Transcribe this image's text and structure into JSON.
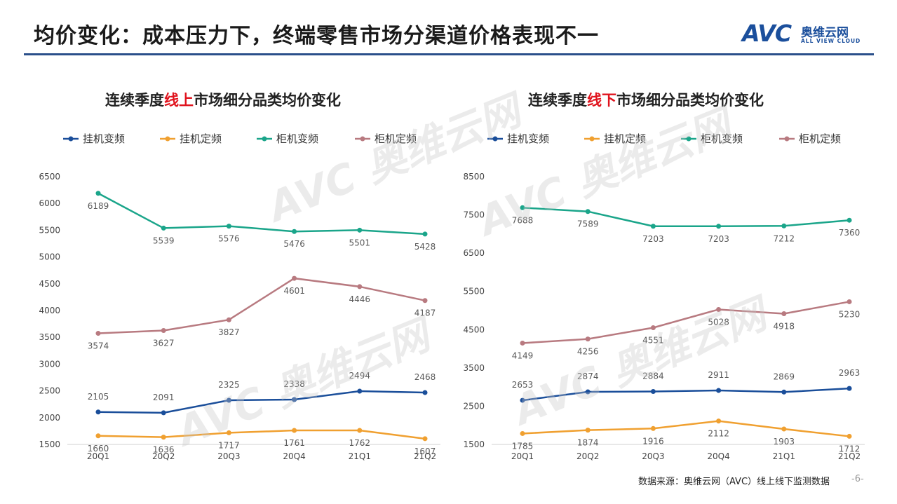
{
  "header": {
    "title": "均价变化：成本压力下，终端零售市场分渠道价格表现不一",
    "logo_mark": "AVC",
    "logo_cn": "奥维云网",
    "logo_en": "ALL VIEW CLOUD"
  },
  "footer": {
    "source": "数据来源：奥维云网（AVC）线上线下监测数据",
    "page_number": "-6-"
  },
  "colors": {
    "hang_var": "#1a4e9a",
    "hang_fixed": "#f0a030",
    "cab_var": "#1aa58a",
    "cab_fixed": "#b87a80",
    "title_rule": "#2a4f8a",
    "highlight": "#e0141e"
  },
  "chart_data": [
    {
      "type": "line",
      "title_parts": [
        "连续季度",
        "线上",
        "市场细分品类均价变化"
      ],
      "categories": [
        "20Q1",
        "20Q2",
        "20Q3",
        "20Q4",
        "21Q1",
        "21Q2"
      ],
      "ylim": [
        1500,
        6500
      ],
      "yticks": [
        "1500",
        "2000",
        "2500",
        "3000",
        "3500",
        "4000",
        "4500",
        "5000",
        "5500",
        "6000",
        "6500"
      ],
      "grid": false,
      "legend_position": "top",
      "series": [
        {
          "name": "挂机变频",
          "values": [
            2105,
            2091,
            2325,
            2338,
            2494,
            2468
          ]
        },
        {
          "name": "挂机定频",
          "values": [
            1660,
            1636,
            1717,
            1761,
            1762,
            1607
          ]
        },
        {
          "name": "柜机变频",
          "values": [
            6189,
            5539,
            5576,
            5476,
            5501,
            5428
          ]
        },
        {
          "name": "柜机定频",
          "values": [
            3574,
            3627,
            3827,
            4601,
            4446,
            4187
          ]
        }
      ]
    },
    {
      "type": "line",
      "title_parts": [
        "连续季度",
        "线下",
        "市场细分品类均价变化"
      ],
      "categories": [
        "20Q1",
        "20Q2",
        "20Q3",
        "20Q4",
        "21Q1",
        "21Q2"
      ],
      "ylim": [
        1500,
        8500
      ],
      "yticks": [
        "1500",
        "2500",
        "3500",
        "4500",
        "5500",
        "6500",
        "7500",
        "8500"
      ],
      "grid": false,
      "legend_position": "top",
      "series": [
        {
          "name": "挂机变频",
          "values": [
            2653,
            2874,
            2884,
            2911,
            2869,
            2963
          ]
        },
        {
          "name": "挂机定频",
          "values": [
            1785,
            1874,
            1916,
            2112,
            1903,
            1712
          ]
        },
        {
          "name": "柜机变频",
          "values": [
            7688,
            7589,
            7203,
            7203,
            7212,
            7360
          ]
        },
        {
          "name": "柜机定频",
          "values": [
            4149,
            4256,
            4551,
            5028,
            4918,
            5230
          ]
        }
      ]
    }
  ]
}
